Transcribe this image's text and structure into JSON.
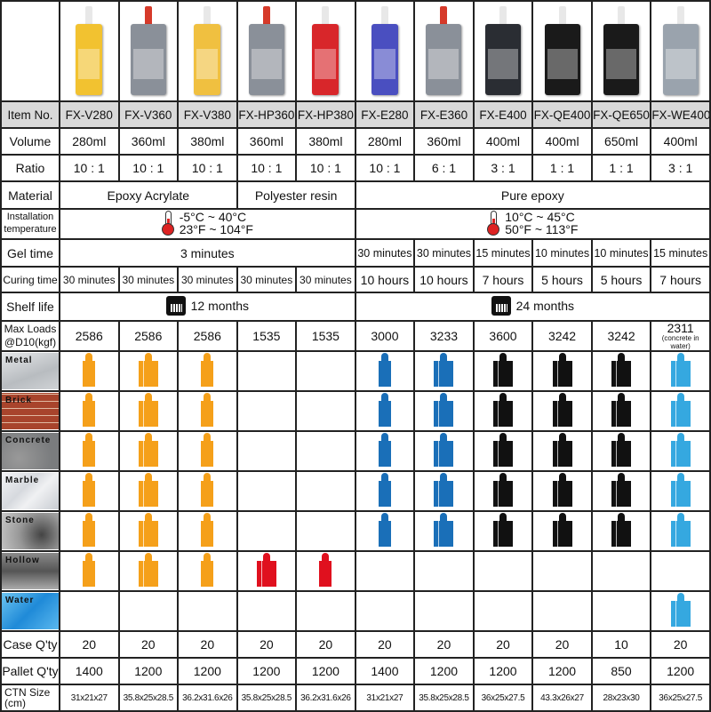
{
  "products": [
    {
      "item": "FX-V280",
      "volume": "280ml",
      "ratio": "10 : 1",
      "curing": "30 minutes",
      "gel": "",
      "max_load": "2586",
      "case_qty": "20",
      "pallet_qty": "1400",
      "ctn": "31x21x27",
      "icon_color": "#f5a01a",
      "icon_type": "single",
      "cart_color": "#f2c230",
      "cap_color": "#e8e8e8"
    },
    {
      "item": "FX-V360",
      "volume": "360ml",
      "ratio": "10 : 1",
      "curing": "30 minutes",
      "gel": "",
      "max_load": "2586",
      "case_qty": "20",
      "pallet_qty": "1200",
      "ctn": "35.8x25x28.5",
      "icon_color": "#f5a01a",
      "icon_type": "double",
      "cart_color": "#8a9099",
      "cap_color": "#d63a2a"
    },
    {
      "item": "FX-V380",
      "volume": "380ml",
      "ratio": "10 : 1",
      "curing": "30 minutes",
      "gel": "",
      "max_load": "2586",
      "case_qty": "20",
      "pallet_qty": "1200",
      "ctn": "36.2x31.6x26",
      "icon_color": "#f5a01a",
      "icon_type": "single",
      "cart_color": "#f0c040",
      "cap_color": "#e8e8e8"
    },
    {
      "item": "FX-HP360",
      "volume": "360ml",
      "ratio": "10 : 1",
      "curing": "30 minutes",
      "gel": "",
      "max_load": "1535",
      "case_qty": "20",
      "pallet_qty": "1200",
      "ctn": "35.8x25x28.5",
      "icon_color": "#e0101e",
      "icon_type": "double",
      "cart_color": "#8a9099",
      "cap_color": "#d63a2a"
    },
    {
      "item": "FX-HP380",
      "volume": "380ml",
      "ratio": "10 : 1",
      "curing": "30 minutes",
      "gel": "",
      "max_load": "1535",
      "case_qty": "20",
      "pallet_qty": "1200",
      "ctn": "36.2x31.6x26",
      "icon_color": "#e0101e",
      "icon_type": "single",
      "cart_color": "#d8262a",
      "cap_color": "#e8e8e8"
    },
    {
      "item": "FX-E280",
      "volume": "280ml",
      "ratio": "10 : 1",
      "curing": "10 hours",
      "gel": "30 minutes",
      "max_load": "3000",
      "case_qty": "20",
      "pallet_qty": "1400",
      "ctn": "31x21x27",
      "icon_color": "#1a6fb8",
      "icon_type": "single",
      "cart_color": "#4a4fc0",
      "cap_color": "#e8e8e8"
    },
    {
      "item": "FX-E360",
      "volume": "360ml",
      "ratio": "6 : 1",
      "curing": "10 hours",
      "gel": "30 minutes",
      "max_load": "3233",
      "case_qty": "20",
      "pallet_qty": "1200",
      "ctn": "35.8x25x28.5",
      "icon_color": "#1a6fb8",
      "icon_type": "double",
      "cart_color": "#8a9099",
      "cap_color": "#d63a2a"
    },
    {
      "item": "FX-E400",
      "volume": "400ml",
      "ratio": "3 : 1",
      "curing": "7 hours",
      "gel": "15 minutes",
      "max_load": "3600",
      "case_qty": "20",
      "pallet_qty": "1200",
      "ctn": "36x25x27.5",
      "icon_color": "#111111",
      "icon_type": "double",
      "cart_color": "#2a2d33",
      "cap_color": "#e8e8e8"
    },
    {
      "item": "FX-QE400",
      "volume": "400ml",
      "ratio": "1 : 1",
      "curing": "5 hours",
      "gel": "10 minutes",
      "max_load": "3242",
      "case_qty": "20",
      "pallet_qty": "1200",
      "ctn": "43.3x26x27",
      "icon_color": "#111111",
      "icon_type": "double",
      "cart_color": "#1a1a1a",
      "cap_color": "#e8e8e8"
    },
    {
      "item": "FX-QE650",
      "volume": "650ml",
      "ratio": "1 : 1",
      "curing": "5 hours",
      "gel": "10 minutes",
      "max_load": "3242",
      "case_qty": "10",
      "pallet_qty": "850",
      "ctn": "28x23x30",
      "icon_color": "#111111",
      "icon_type": "double",
      "cart_color": "#1a1a1a",
      "cap_color": "#e8e8e8"
    },
    {
      "item": "FX-WE400",
      "volume": "400ml",
      "ratio": "3 : 1",
      "curing": "7 hours",
      "gel": "15 minutes",
      "max_load": "2311",
      "max_load_note": "(concrete in water)",
      "case_qty": "20",
      "pallet_qty": "1200",
      "ctn": "36x25x27.5",
      "icon_color": "#35a8e0",
      "icon_type": "double",
      "cart_color": "#9aa3ad",
      "cap_color": "#e8e8e8"
    }
  ],
  "labels": {
    "item": "Item No.",
    "volume": "Volume",
    "ratio": "Ratio",
    "material": "Material",
    "install_temp": "Installation temperature",
    "gel": "Gel time",
    "curing": "Curing time",
    "shelf": "Shelf life",
    "max_load": "Max Loads @D10(kgf)",
    "case_qty": "Case Q'ty",
    "pallet_qty": "Pallet Q'ty",
    "ctn": "CTN Size (cm)"
  },
  "material_groups": [
    {
      "label": "Epoxy Acrylate",
      "span": 3
    },
    {
      "label": "Polyester resin",
      "span": 2
    },
    {
      "label": "Pure epoxy",
      "span": 6
    }
  ],
  "temp_groups": [
    {
      "celsius": "-5°C ~ 40°C",
      "fahrenheit": "23°F ~ 104°F",
      "span": 5
    },
    {
      "celsius": "10°C ~ 45°C",
      "fahrenheit": "50°F ~ 113°F",
      "span": 6
    }
  ],
  "gel_shared": {
    "label": "3 minutes",
    "span": 5
  },
  "shelf_groups": [
    {
      "label": "12 months",
      "span": 5
    },
    {
      "label": "24 months",
      "span": 6
    }
  ],
  "substrates": [
    {
      "name": "Metal",
      "bg": "linear-gradient(160deg,#e4e6e8,#b8bcc0 60%,#d0d3d6)",
      "applicable": [
        1,
        1,
        1,
        0,
        0,
        1,
        1,
        1,
        1,
        1,
        1
      ]
    },
    {
      "name": "Brick",
      "bg": "repeating-linear-gradient(0deg,#a8442c 0 7px,#e0b8a0 7px 8px),#a8442c",
      "applicable": [
        1,
        1,
        1,
        0,
        0,
        1,
        1,
        1,
        1,
        1,
        1
      ]
    },
    {
      "name": "Concrete",
      "bg": "radial-gradient(circle at 30% 70%,#999,#7a7c7e 70%)",
      "applicable": [
        1,
        1,
        1,
        0,
        0,
        1,
        1,
        1,
        1,
        1,
        1
      ]
    },
    {
      "name": "Marble",
      "bg": "linear-gradient(135deg,#f2f3f5,#d6d9de 40%,#f0f1f3 60%,#c8ccd2)",
      "applicable": [
        1,
        1,
        1,
        0,
        0,
        1,
        1,
        1,
        1,
        1,
        1
      ]
    },
    {
      "name": "Stone",
      "bg": "radial-gradient(circle at 70% 60%,#444,#999 50%,#c8c8c8)",
      "applicable": [
        1,
        1,
        1,
        0,
        0,
        1,
        1,
        1,
        1,
        1,
        1
      ]
    },
    {
      "name": "Hollow",
      "bg": "linear-gradient(180deg,#8a8a8a,#555 50%,#aaa)",
      "applicable": [
        1,
        1,
        1,
        1,
        1,
        0,
        0,
        0,
        0,
        0,
        0
      ]
    },
    {
      "name": "Water",
      "bg": "linear-gradient(135deg,#6cc4f0,#1f8ad8 50%,#5ab8ee)",
      "applicable": [
        0,
        0,
        0,
        0,
        0,
        0,
        0,
        0,
        0,
        0,
        1
      ]
    }
  ]
}
